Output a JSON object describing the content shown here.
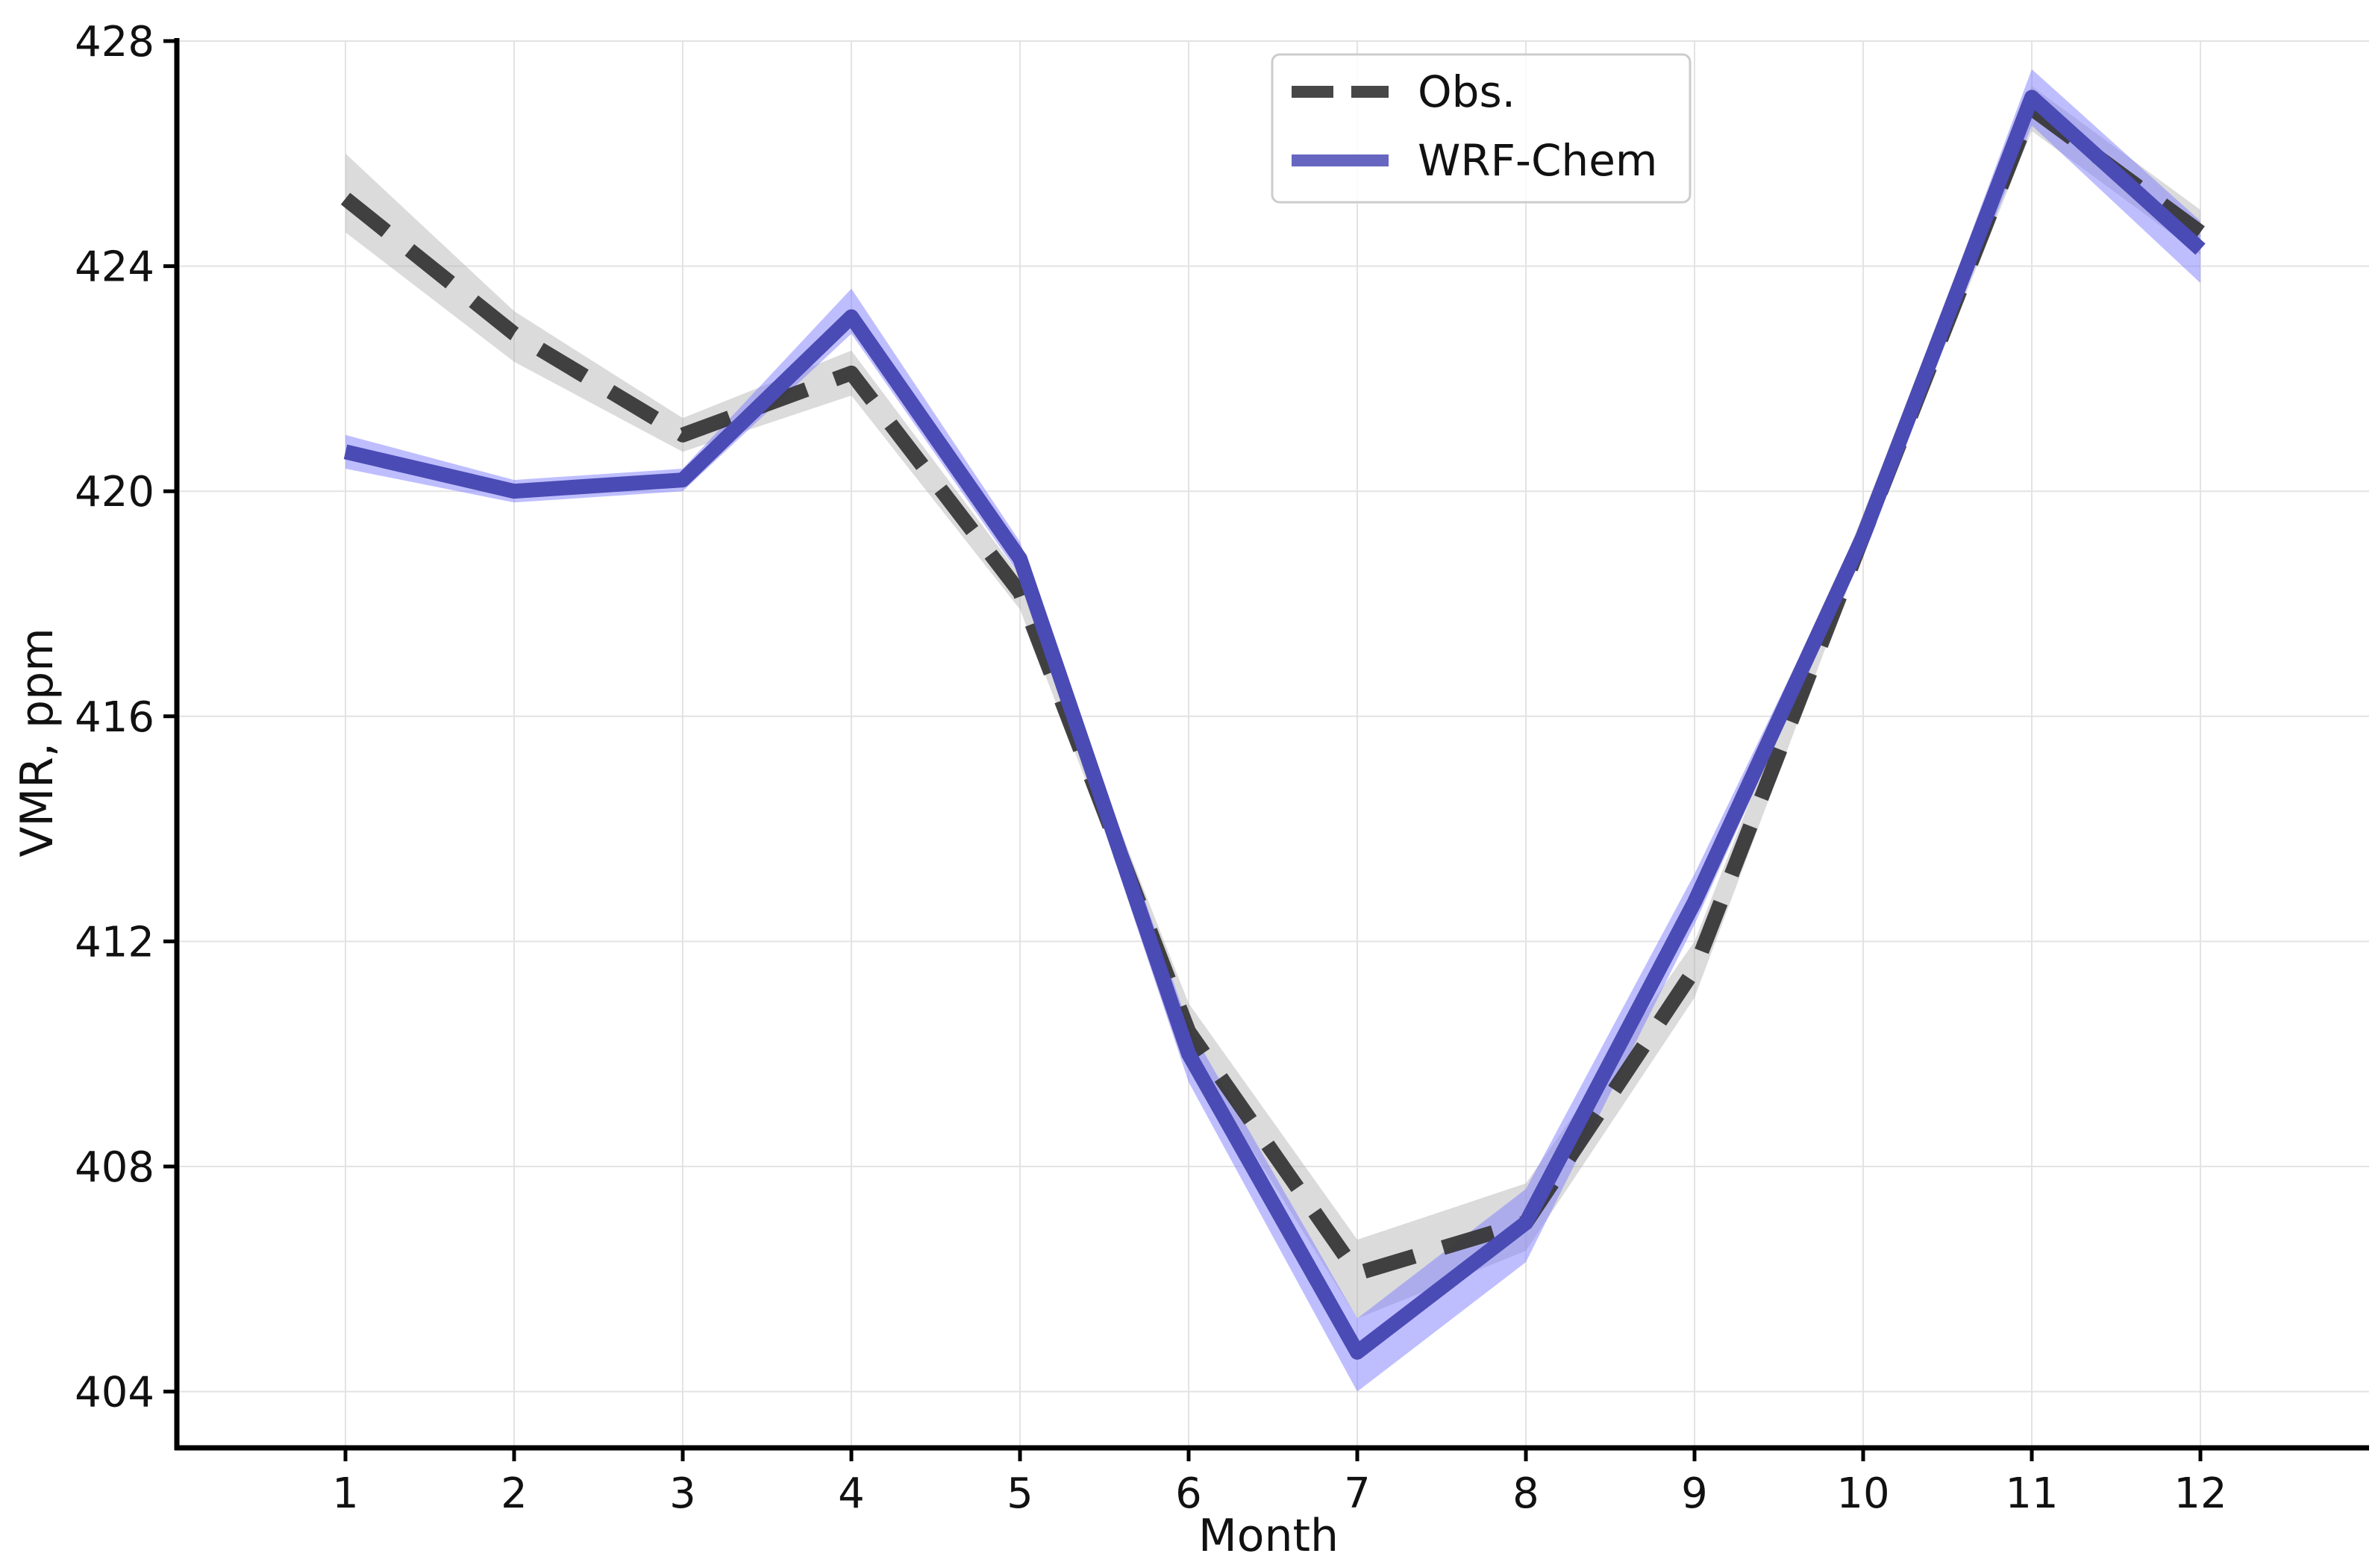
{
  "chart_data": {
    "type": "line",
    "title": "",
    "xlabel": "Month",
    "ylabel": "VMR, ppm",
    "x": [
      1,
      2,
      3,
      4,
      5,
      6,
      7,
      8,
      9,
      10,
      11,
      12
    ],
    "xlim": [
      0,
      13
    ],
    "ylim": [
      403,
      428
    ],
    "yticks": [
      404,
      408,
      412,
      416,
      420,
      424,
      428
    ],
    "grid": true,
    "legend_position": "top-center",
    "series": [
      {
        "name": "Obs.",
        "style": "dashed",
        "color": "#333333",
        "band_color": "#b0b0b0",
        "values": [
          425.2,
          422.8,
          421.0,
          422.1,
          418.2,
          410.4,
          406.1,
          407.0,
          411.5,
          419.2,
          426.8,
          424.6
        ],
        "lower": [
          424.6,
          422.3,
          420.7,
          421.7,
          417.9,
          410.1,
          405.3,
          406.5,
          411.0,
          419.0,
          426.4,
          424.2
        ],
        "upper": [
          426.0,
          423.2,
          421.3,
          422.5,
          418.5,
          410.9,
          406.7,
          407.7,
          412.0,
          419.6,
          427.2,
          425.0
        ]
      },
      {
        "name": "WRF-Chem",
        "style": "solid",
        "color": "#4b4bb5",
        "band_color": "#7d7dff",
        "values": [
          420.7,
          420.0,
          420.2,
          423.1,
          418.8,
          410.0,
          404.7,
          407.0,
          412.7,
          419.2,
          427.0,
          424.3
        ],
        "lower": [
          420.4,
          419.8,
          420.0,
          422.8,
          418.5,
          409.5,
          404.0,
          406.3,
          412.3,
          419.0,
          426.5,
          423.7
        ],
        "upper": [
          421.0,
          420.2,
          420.4,
          423.6,
          419.1,
          410.5,
          405.3,
          407.6,
          413.2,
          419.4,
          427.5,
          424.8
        ]
      }
    ]
  }
}
